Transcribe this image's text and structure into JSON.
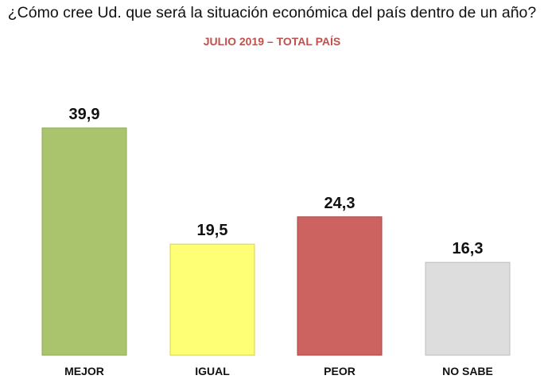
{
  "title": "¿Cómo cree Ud. que será la situación económica del país dentro de un año?",
  "subtitle": "JULIO 2019 – TOTAL PAÍS",
  "colors": {
    "subtitle": "#c0504d",
    "bars": [
      "#a9c46c",
      "#ffff75",
      "#cc6361",
      "#dddddd"
    ],
    "bar_strokes": [
      "#8eab52",
      "#d9d04a",
      "#a84644",
      "#bdbdbd"
    ]
  },
  "chart_data": {
    "type": "bar",
    "title": "¿Cómo cree Ud. que será la situación económica del país dentro de un año?",
    "subtitle": "JULIO 2019 – TOTAL PAÍS",
    "categories": [
      "MEJOR",
      "IGUAL",
      "PEOR",
      "NO SABE"
    ],
    "values": [
      39.9,
      19.5,
      24.3,
      16.3
    ],
    "value_labels": [
      "39,9",
      "19,5",
      "24,3",
      "16,3"
    ],
    "xlabel": "",
    "ylabel": "",
    "ylim": [
      0,
      40
    ],
    "grid": false,
    "legend": "none"
  }
}
